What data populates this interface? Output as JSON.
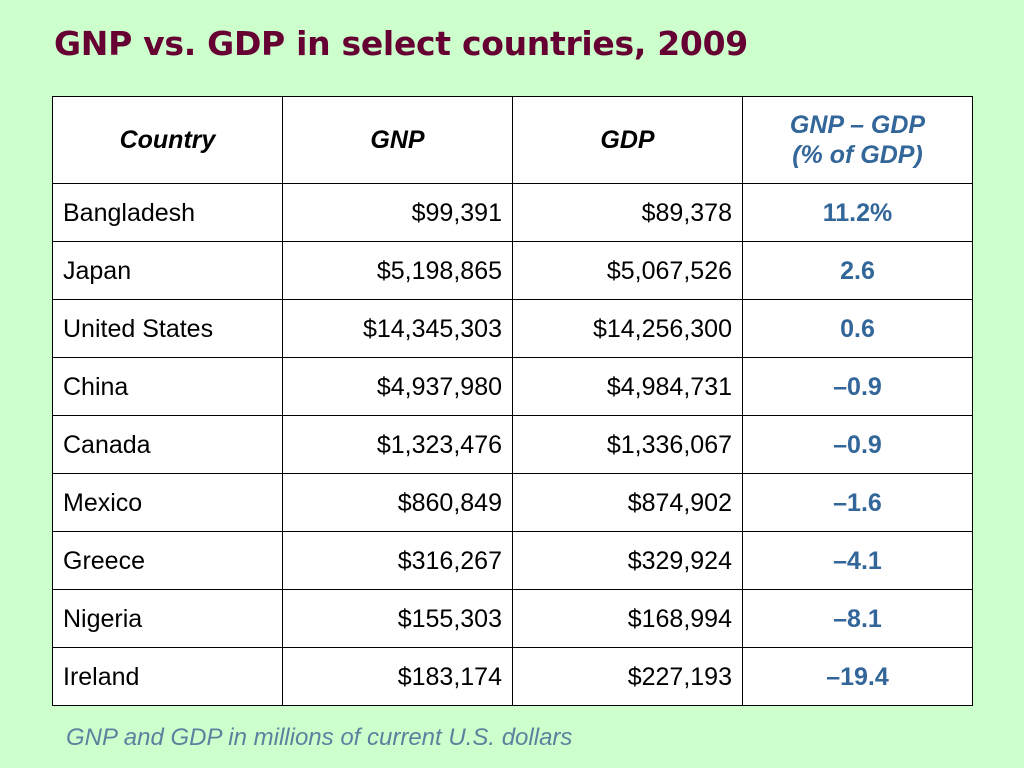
{
  "colors": {
    "background": "#ccffcc",
    "title": "#660033",
    "accent_blue": "#336699",
    "footnote": "#5f7f9f",
    "text": "#000000"
  },
  "title": "GNP vs. GDP in select countries, 2009",
  "table": {
    "headers": [
      "Country",
      "GNP",
      "GDP",
      "GNP – GDP",
      "(% of GDP)"
    ],
    "rows": [
      {
        "country": "Bangladesh",
        "gnp": "$99,391",
        "gdp": "$89,378",
        "diff": "11.2%"
      },
      {
        "country": "Japan",
        "gnp": "$5,198,865",
        "gdp": "$5,067,526",
        "diff": "2.6"
      },
      {
        "country": "United States",
        "gnp": "$14,345,303",
        "gdp": "$14,256,300",
        "diff": "0.6"
      },
      {
        "country": "China",
        "gnp": "$4,937,980",
        "gdp": "$4,984,731",
        "diff": "–0.9"
      },
      {
        "country": "Canada",
        "gnp": "$1,323,476",
        "gdp": "$1,336,067",
        "diff": "–0.9"
      },
      {
        "country": "Mexico",
        "gnp": "$860,849",
        "gdp": "$874,902",
        "diff": "–1.6"
      },
      {
        "country": "Greece",
        "gnp": "$316,267",
        "gdp": "$329,924",
        "diff": "–4.1"
      },
      {
        "country": "Nigeria",
        "gnp": "$155,303",
        "gdp": "$168,994",
        "diff": "–8.1"
      },
      {
        "country": "Ireland",
        "gnp": "$183,174",
        "gdp": "$227,193",
        "diff": "–19.4"
      }
    ]
  },
  "footnote": "GNP and GDP in millions of current U.S. dollars"
}
